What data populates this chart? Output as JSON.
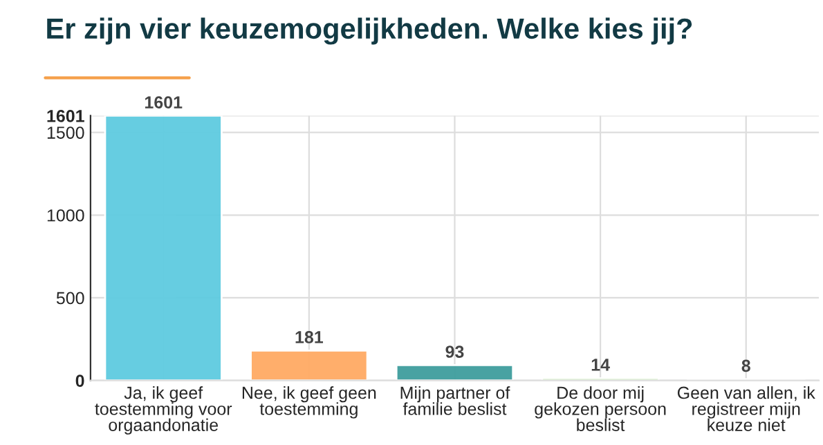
{
  "chart_data": {
    "type": "bar",
    "title": "Er zijn vier keuzemogelijkheden. Welke kies jij?",
    "categories": [
      "Ja, ik geef\ntoestemming voor\norgaandonatie",
      "Nee, ik geef geen\ntoestemming",
      "Mijn partner of\nfamilie beslist",
      "De door mij\ngekozen persoon\nbeslist",
      "Geen van allen, ik\nregistreer mijn\nkeuze niet"
    ],
    "values": [
      1601,
      181,
      93,
      14,
      8
    ],
    "colors": [
      "#5ecbe0",
      "#ffaa64",
      "#3f9e9e",
      "#8ed16a",
      "#3a9cb0"
    ],
    "ylim": [
      0,
      1601
    ],
    "yticks": [
      0,
      500,
      1000,
      1500,
      1601
    ],
    "grid": true,
    "data_labels": true
  }
}
